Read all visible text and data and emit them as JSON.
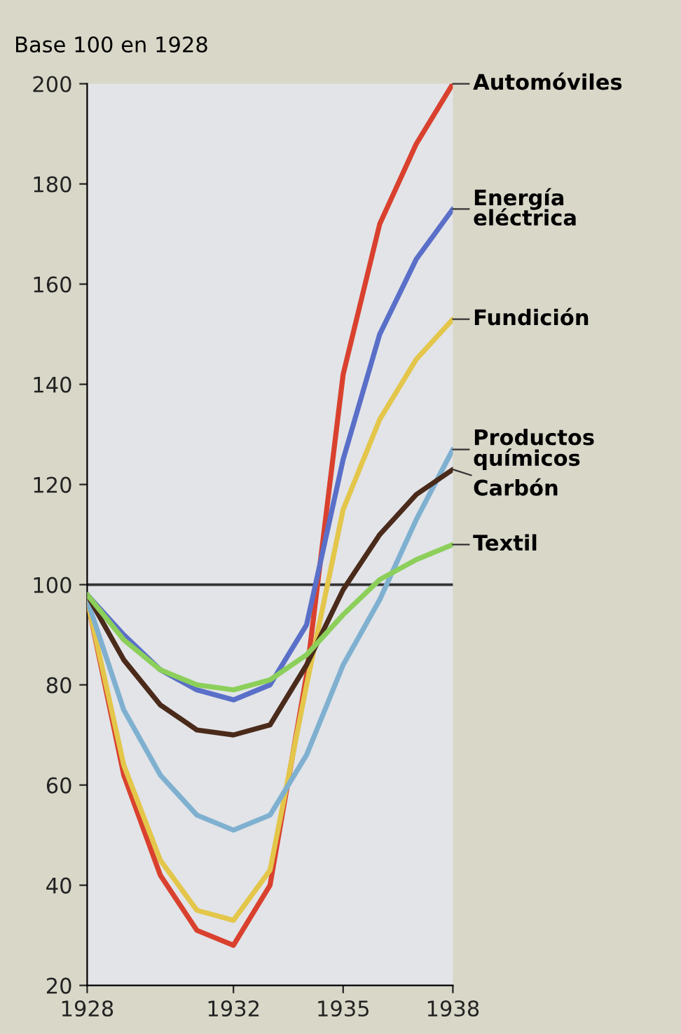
{
  "chart_data": {
    "type": "line",
    "ylabel": "Base 100 en 1928",
    "x": [
      1928,
      1929,
      1930,
      1931,
      1932,
      1933,
      1934,
      1935,
      1936,
      1937,
      1938
    ],
    "series": [
      {
        "name": "Automóviles",
        "color": "#d9412e",
        "values": [
          97,
          62,
          42,
          31,
          28,
          40,
          82,
          142,
          172,
          188,
          200
        ]
      },
      {
        "name": "Energía\neléctrica",
        "color": "#5a6fc8",
        "values": [
          98,
          90,
          83,
          79,
          77,
          80,
          92,
          125,
          150,
          165,
          175
        ]
      },
      {
        "name": "Fundición",
        "color": "#e3c64a",
        "values": [
          97,
          64,
          45,
          35,
          33,
          43,
          80,
          115,
          133,
          145,
          153
        ]
      },
      {
        "name": "Productos\nquímicos",
        "color": "#7fb0d0",
        "values": [
          97,
          75,
          62,
          54,
          51,
          54,
          66,
          84,
          97,
          113,
          127
        ]
      },
      {
        "name": "Carbón",
        "color": "#4a2a1a",
        "values": [
          98,
          85,
          76,
          71,
          70,
          72,
          84,
          99,
          110,
          118,
          123
        ]
      },
      {
        "name": "Textil",
        "color": "#8ccf5a",
        "values": [
          98,
          89,
          83,
          80,
          79,
          81,
          86,
          94,
          101,
          105,
          108
        ]
      }
    ],
    "xlim": [
      1928,
      1938
    ],
    "xticks": [
      1928,
      1932,
      1935,
      1938
    ],
    "ylim": [
      20,
      200
    ],
    "yticks": [
      20,
      40,
      60,
      80,
      100,
      120,
      140,
      160,
      180,
      200
    ],
    "ref_lines": [
      {
        "axis": "y",
        "value": 100,
        "color": "#333333"
      }
    ],
    "grid": false,
    "legend": false,
    "marker": "none",
    "line_style": "solid"
  }
}
